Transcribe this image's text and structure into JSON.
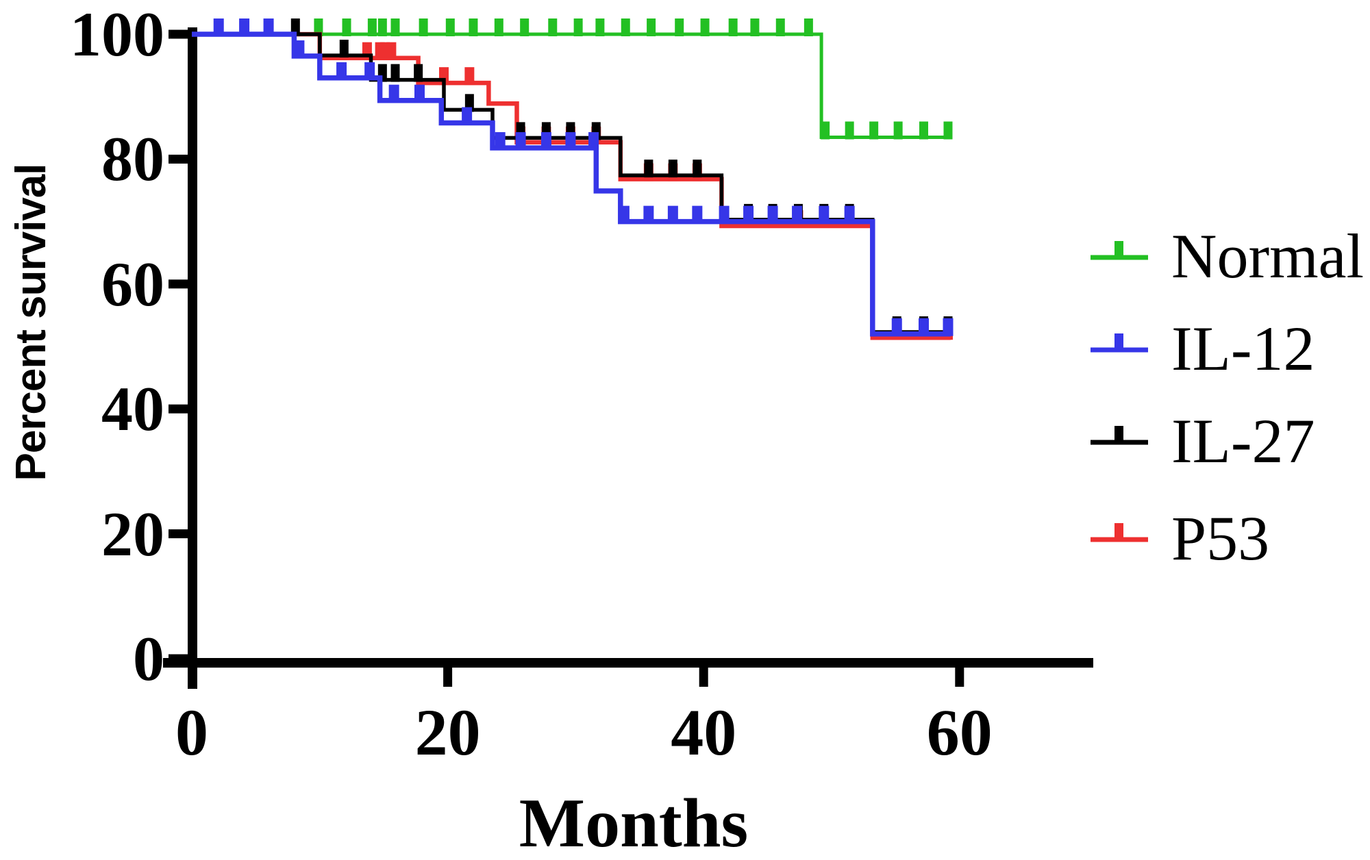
{
  "chart_data": {
    "type": "line",
    "subtype": "kaplan-meier-step-survival",
    "title": "",
    "xlabel": "Months",
    "ylabel": "Percent survival",
    "xlim": [
      0,
      70
    ],
    "ylim": [
      0,
      100
    ],
    "x_ticks": [
      0,
      20,
      40,
      60
    ],
    "y_ticks": [
      0,
      20,
      40,
      60,
      80,
      100
    ],
    "grid": false,
    "background": "#ffffff",
    "axis_color": "#000000",
    "legend_position": "right",
    "legend_order": [
      "Normal",
      "IL-12",
      "IL-27",
      "P53"
    ],
    "series": [
      {
        "name": "Normal",
        "color": "#23c023",
        "stroke_width": 5,
        "censor_width": 13,
        "points": [
          [
            0,
            100
          ],
          [
            49.2,
            100
          ],
          [
            49.2,
            83.5
          ],
          [
            59.3,
            83.5
          ]
        ],
        "censors": [
          [
            9.9,
            100
          ],
          [
            12.1,
            100
          ],
          [
            14.1,
            100
          ],
          [
            14.9,
            100
          ],
          [
            15.9,
            100
          ],
          [
            18.1,
            100
          ],
          [
            20.2,
            100
          ],
          [
            22,
            100
          ],
          [
            24,
            100
          ],
          [
            26,
            100
          ],
          [
            28.2,
            100
          ],
          [
            30.2,
            100
          ],
          [
            31.9,
            100
          ],
          [
            33.9,
            100
          ],
          [
            35.9,
            100
          ],
          [
            38.1,
            100
          ],
          [
            40.1,
            100
          ],
          [
            42.3,
            100
          ],
          [
            44,
            100
          ],
          [
            46,
            100
          ],
          [
            48.2,
            100
          ],
          [
            49.5,
            83.5
          ],
          [
            51.4,
            83.5
          ],
          [
            53.3,
            83.5
          ],
          [
            55.2,
            83.5
          ],
          [
            57.2,
            83.5
          ],
          [
            59.1,
            83.5
          ]
        ]
      },
      {
        "name": "P53",
        "color": "#ee3030",
        "stroke_width": 6.5,
        "censor_width": 14,
        "points": [
          [
            0,
            100
          ],
          [
            10,
            100
          ],
          [
            10,
            96.2
          ],
          [
            17.7,
            96.2
          ],
          [
            17.7,
            92.2
          ],
          [
            23.2,
            92.2
          ],
          [
            23.2,
            88.9
          ],
          [
            25.4,
            88.9
          ],
          [
            25.4,
            82.7
          ],
          [
            33.5,
            82.7
          ],
          [
            33.5,
            76.8
          ],
          [
            41.4,
            76.8
          ],
          [
            41.4,
            69.3
          ],
          [
            53.2,
            69.3
          ],
          [
            53.2,
            51.4
          ],
          [
            59.3,
            51.4
          ]
        ],
        "censors": [
          [
            13.7,
            96.2
          ],
          [
            14.7,
            96.2
          ],
          [
            15.1,
            96.2
          ],
          [
            15.6,
            96.2
          ],
          [
            19.7,
            92.2
          ],
          [
            21.7,
            92.2
          ],
          [
            25.7,
            82.7
          ],
          [
            27.7,
            82.7
          ],
          [
            29.6,
            82.7
          ],
          [
            31.6,
            82.7
          ],
          [
            35.7,
            76.8
          ],
          [
            37.6,
            76.8
          ],
          [
            39.5,
            76.8
          ],
          [
            43.5,
            69.3
          ],
          [
            45.4,
            69.3
          ],
          [
            47.4,
            69.3
          ],
          [
            49.4,
            69.3
          ],
          [
            51.4,
            69.3
          ],
          [
            55.1,
            51.4
          ],
          [
            57.2,
            51.4
          ],
          [
            59.1,
            51.4
          ]
        ]
      },
      {
        "name": "IL-27",
        "color": "#000000",
        "stroke_width": 5.5,
        "censor_width": 13,
        "points": [
          [
            0,
            100
          ],
          [
            10,
            100
          ],
          [
            10,
            96.6
          ],
          [
            14,
            96.6
          ],
          [
            14,
            92.7
          ],
          [
            19.7,
            92.7
          ],
          [
            19.7,
            87.9
          ],
          [
            23.5,
            87.9
          ],
          [
            23.5,
            83.4
          ],
          [
            33.5,
            83.4
          ],
          [
            33.5,
            77.4
          ],
          [
            41.4,
            77.4
          ],
          [
            41.4,
            70.3
          ],
          [
            53.2,
            70.3
          ],
          [
            53.2,
            52.3
          ],
          [
            59.3,
            52.3
          ]
        ],
        "censors": [
          [
            8.1,
            100
          ],
          [
            11.9,
            96.6
          ],
          [
            14.9,
            92.7
          ],
          [
            15.9,
            92.7
          ],
          [
            17.7,
            92.7
          ],
          [
            21.7,
            87.9
          ],
          [
            25.7,
            83.4
          ],
          [
            27.7,
            83.4
          ],
          [
            29.6,
            83.4
          ],
          [
            31.6,
            83.4
          ],
          [
            35.7,
            77.4
          ],
          [
            37.6,
            77.4
          ],
          [
            39.5,
            77.4
          ],
          [
            43.5,
            70.3
          ],
          [
            45.4,
            70.3
          ],
          [
            47.4,
            70.3
          ],
          [
            49.4,
            70.3
          ],
          [
            51.4,
            70.3
          ],
          [
            55.1,
            52.3
          ],
          [
            57.2,
            52.3
          ],
          [
            59.1,
            52.3
          ]
        ]
      },
      {
        "name": "IL-12",
        "color": "#3636e8",
        "stroke_width": 7.5,
        "censor_width": 15,
        "points": [
          [
            0,
            100
          ],
          [
            8,
            100
          ],
          [
            8,
            96.5
          ],
          [
            10,
            96.5
          ],
          [
            10,
            93
          ],
          [
            14.7,
            93
          ],
          [
            14.7,
            89.4
          ],
          [
            19.5,
            89.4
          ],
          [
            19.5,
            85.8
          ],
          [
            23.5,
            85.8
          ],
          [
            23.5,
            81.8
          ],
          [
            31.6,
            81.8
          ],
          [
            31.6,
            74.9
          ],
          [
            33.5,
            74.9
          ],
          [
            33.5,
            70
          ],
          [
            53.2,
            70
          ],
          [
            53.2,
            52
          ],
          [
            59.3,
            52
          ]
        ],
        "censors": [
          [
            2.1,
            100
          ],
          [
            4.1,
            100
          ],
          [
            6,
            100
          ],
          [
            8.4,
            96.5
          ],
          [
            11.7,
            93
          ],
          [
            13.9,
            93
          ],
          [
            15.8,
            89.4
          ],
          [
            17.8,
            89.4
          ],
          [
            21.5,
            85.8
          ],
          [
            24.1,
            81.8
          ],
          [
            25.7,
            81.8
          ],
          [
            27.7,
            81.8
          ],
          [
            29.6,
            81.8
          ],
          [
            31.4,
            81.8
          ],
          [
            33.8,
            70
          ],
          [
            35.7,
            70
          ],
          [
            37.6,
            70
          ],
          [
            39.5,
            70
          ],
          [
            41.6,
            70
          ],
          [
            43.5,
            70
          ],
          [
            45.4,
            70
          ],
          [
            47.3,
            70
          ],
          [
            49.4,
            70
          ],
          [
            51.4,
            70
          ],
          [
            55.1,
            52
          ],
          [
            57.2,
            52
          ],
          [
            59.1,
            52
          ]
        ]
      }
    ]
  }
}
